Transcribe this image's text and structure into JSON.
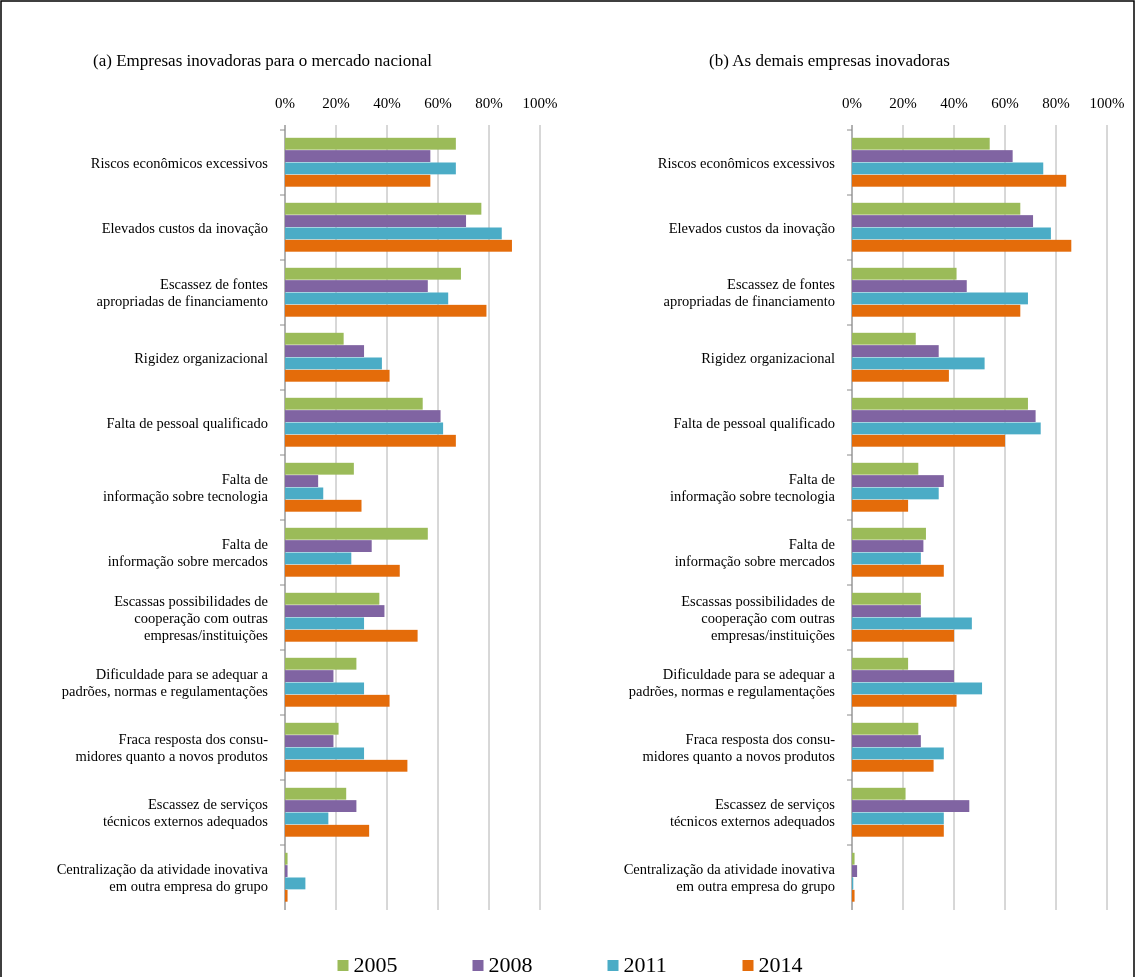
{
  "chart_data": [
    {
      "type": "bar",
      "orientation": "horizontal",
      "title": "(a) Empresas inovadoras para o mercado nacional",
      "categories": [
        "Riscos econômicos excessivos",
        "Elevados custos da inovação",
        "Escassez de fontes\napropriadas de financiamento",
        "Rigidez organizacional",
        "Falta de pessoal qualificado",
        "Falta de\ninformação sobre tecnologia",
        "Falta de\ninformação sobre mercados",
        "Escassas possibilidades de\ncooperação com outras\nempresas/instituições",
        "Dificuldade para se adequar a\npadrões, normas e regulamentações",
        "Fraca resposta dos consu-\nmidores quanto a novos produtos",
        "Escassez de serviços\ntécnicos externos adequados",
        "Centralização da atividade inovativa\nem outra empresa do grupo"
      ],
      "series": [
        {
          "name": "2005",
          "color": "#9bbb59",
          "values": [
            67,
            77,
            69,
            23,
            54,
            27,
            56,
            37,
            28,
            21,
            24,
            1
          ]
        },
        {
          "name": "2008",
          "color": "#8064a2",
          "values": [
            57,
            71,
            56,
            31,
            61,
            13,
            34,
            39,
            19,
            19,
            28,
            1
          ]
        },
        {
          "name": "2011",
          "color": "#4bacc6",
          "values": [
            67,
            85,
            64,
            38,
            62,
            15,
            26,
            31,
            31,
            31,
            17,
            8
          ]
        },
        {
          "name": "2014",
          "color": "#e46c0a",
          "values": [
            57,
            89,
            79,
            41,
            67,
            30,
            45,
            52,
            41,
            48,
            33,
            1
          ]
        }
      ],
      "xlim": [
        0,
        100
      ],
      "xticks": [
        {
          "value": 0,
          "label": "0%"
        },
        {
          "value": 20,
          "label": "20%"
        },
        {
          "value": 40,
          "label": "40%"
        },
        {
          "value": 60,
          "label": "60%"
        },
        {
          "value": 80,
          "label": "80%"
        },
        {
          "value": 100,
          "label": "100%"
        }
      ],
      "grid": "x",
      "legend": "bottom"
    },
    {
      "type": "bar",
      "orientation": "horizontal",
      "title": "(b) As demais empresas inovadoras",
      "categories": [
        "Riscos econômicos excessivos",
        "Elevados custos da inovação",
        "Escassez de fontes\napropriadas de financiamento",
        "Rigidez organizacional",
        "Falta de pessoal qualificado",
        "Falta de\ninformação sobre tecnologia",
        "Falta de\ninformação sobre mercados",
        "Escassas possibilidades de\ncooperação com outras\nempresas/instituições",
        "Dificuldade para se adequar a\npadrões, normas e regulamentações",
        "Fraca resposta dos consu-\nmidores quanto a novos produtos",
        "Escassez de serviços\ntécnicos externos adequados",
        "Centralização da atividade inovativa\nem outra empresa do grupo"
      ],
      "series": [
        {
          "color": "#9bbb59",
          "values": [
            54,
            66,
            41,
            25,
            69,
            26,
            29,
            27,
            22,
            26,
            21,
            1
          ]
        },
        {
          "color": "#8064a2",
          "values": [
            63,
            71,
            45,
            34,
            72,
            36,
            28,
            27,
            40,
            27,
            46,
            2
          ]
        },
        {
          "color": "#4bacc6",
          "values": [
            75,
            78,
            69,
            52,
            74,
            34,
            27,
            47,
            51,
            36,
            36,
            0.5
          ]
        },
        {
          "color": "#e46c0a",
          "values": [
            84,
            86,
            66,
            38,
            60,
            22,
            36,
            40,
            41,
            32,
            36,
            1
          ]
        }
      ],
      "xlim": [
        0,
        100
      ],
      "xticks": [
        {
          "value": 0,
          "label": "0%"
        },
        {
          "value": 20,
          "label": "20%"
        },
        {
          "value": 40,
          "label": "40%"
        },
        {
          "value": 60,
          "label": "60%"
        },
        {
          "value": 80,
          "label": "80%"
        },
        {
          "value": 100,
          "label": "100%"
        }
      ],
      "grid": "x"
    }
  ]
}
